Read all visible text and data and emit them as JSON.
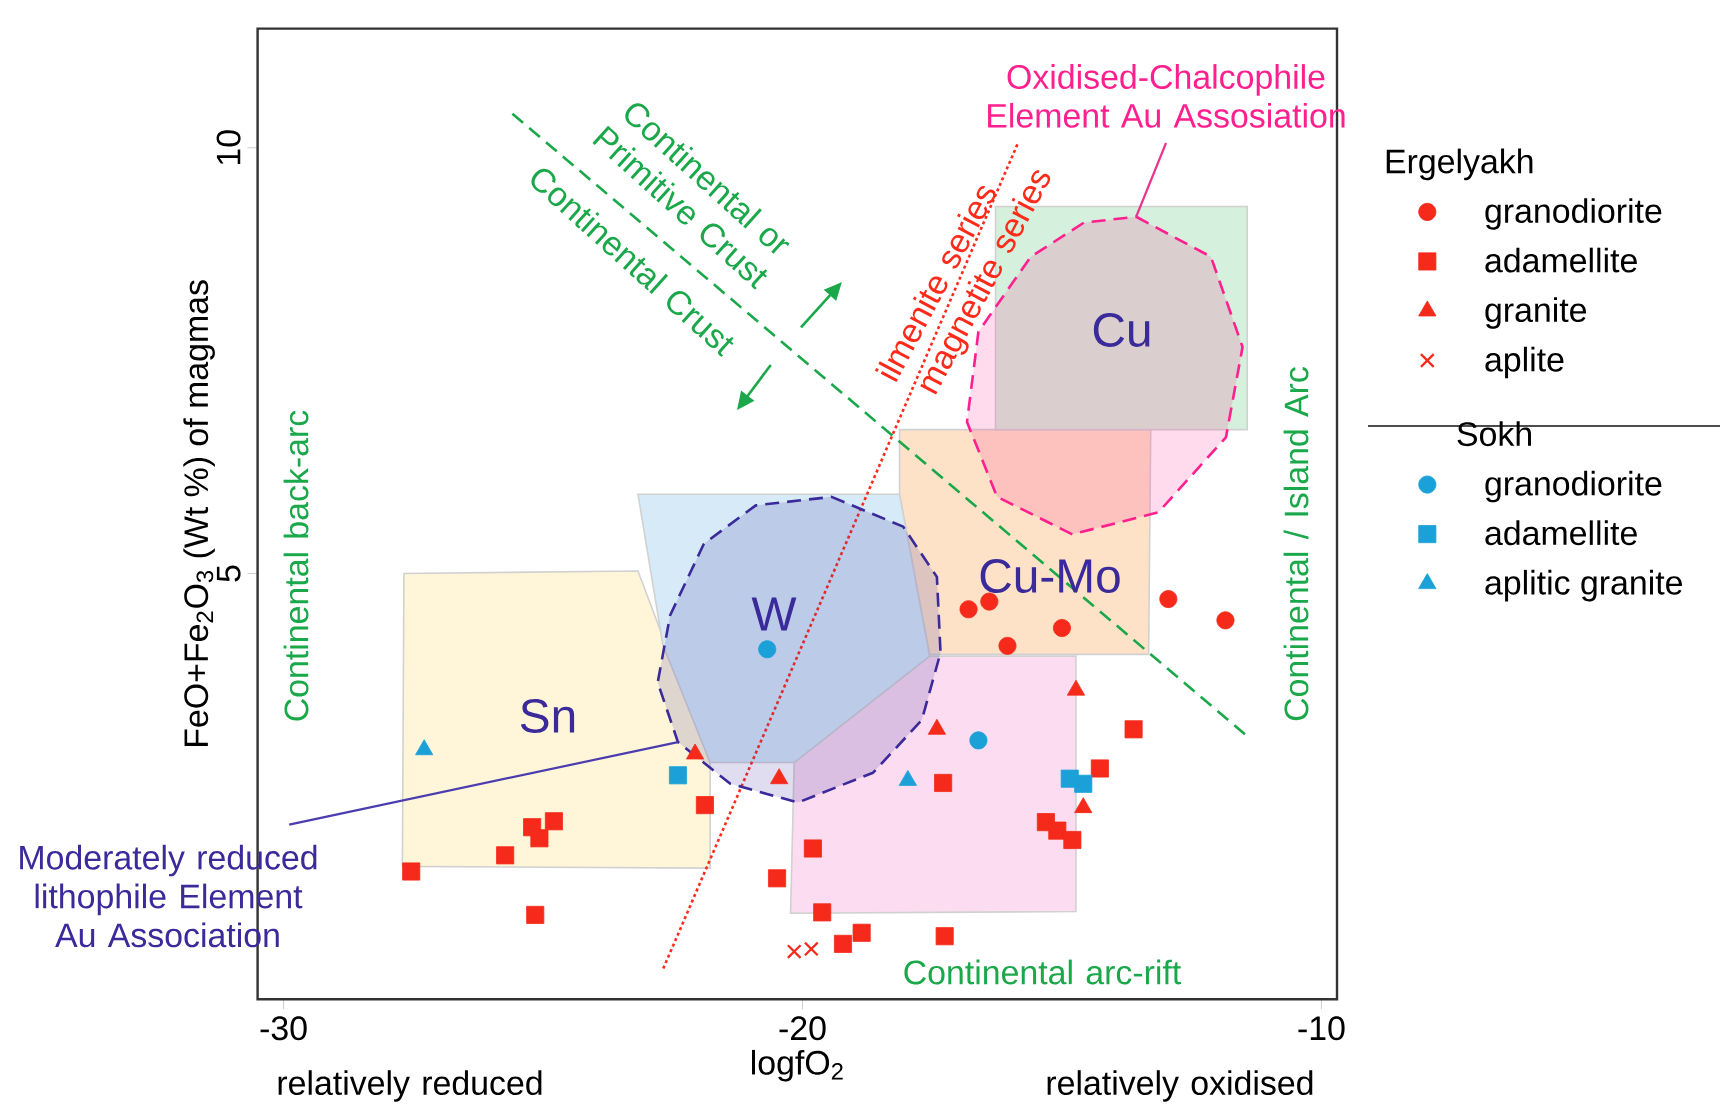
{
  "chart_data": {
    "type": "scatter",
    "xlabel": "logfO$_{2}$",
    "ylabel": "FeO+Fe$_{2}$O$_{3}$ (Wt %) of magmas",
    "xlim": [
      -30.5,
      -9.7
    ],
    "ylim": [
      0,
      11.4
    ],
    "xticks": [
      -30,
      -20,
      -10
    ],
    "yticks": [
      5,
      10
    ],
    "grid": false,
    "legend": "right",
    "series": [
      {
        "type": "area",
        "color": "#fff6d9",
        "x": [
          -27.68,
          -23.17,
          -21.78,
          -21.78,
          -27.71
        ],
        "values": [
          5.0,
          5.03,
          2.78,
          1.54,
          1.56
        ]
      },
      {
        "type": "area",
        "color": "#fde2c8",
        "x": [
          -18.13,
          -13.29,
          -13.33,
          -17.55,
          -18.13
        ],
        "values": [
          6.69,
          6.69,
          4.05,
          4.05,
          5.93
        ]
      },
      {
        "type": "area",
        "color": "#fbdcf0",
        "x": [
          -20.16,
          -17.55,
          -14.73,
          -14.73,
          -20.23
        ],
        "values": [
          2.78,
          4.03,
          4.03,
          1.03,
          1.01
        ]
      },
      {
        "type": "area",
        "color": "#d5f0dc",
        "x": [
          -16.28,
          -11.43,
          -11.43,
          -16.28
        ],
        "values": [
          9.31,
          9.31,
          6.69,
          6.69
        ]
      },
      {
        "type": "area",
        "color": "#d6eaf7",
        "x": [
          -22.69,
          -21.78,
          -20.16,
          -17.55,
          -18.13,
          -23.17
        ],
        "values": [
          4.16,
          2.78,
          2.78,
          4.03,
          5.93,
          5.93
        ]
      },
      {
        "type": "line",
        "color": "#1aa84a",
        "line_style": "dashed",
        "x": [
          -25.59,
          -11.43
        ],
        "values": [
          10.4,
          3.09
        ]
      },
      {
        "type": "line",
        "color": "#ff2a1a",
        "line_style": "dotted",
        "x": [
          -15.86,
          -22.69
        ],
        "values": [
          10.04,
          0.35
        ]
      },
      {
        "type": "area",
        "color": "#3a2a9a",
        "line_style": "dashed",
        "x": [
          -19.44,
          -18.06,
          -17.41,
          -17.34,
          -17.7,
          -18.64,
          -20.09,
          -21.39,
          -22.4,
          -22.79,
          -22.55,
          -21.9,
          -20.9
        ],
        "values": [
          5.9,
          5.55,
          4.96,
          4.07,
          3.28,
          2.66,
          2.31,
          2.53,
          3.02,
          3.72,
          4.51,
          5.35,
          5.8
        ]
      },
      {
        "type": "area",
        "color": "#ff1f8e",
        "line_style": "dashed",
        "x": [
          -13.57,
          -12.13,
          -11.52,
          -11.84,
          -13.14,
          -14.8,
          -16.25,
          -16.83,
          -16.61,
          -15.6,
          -14.58
        ],
        "values": [
          9.19,
          8.72,
          7.66,
          6.6,
          5.72,
          5.46,
          5.9,
          6.78,
          7.84,
          8.72,
          9.12
        ]
      },
      {
        "name": "granodiorite",
        "color": "#f52a1a",
        "marker": "circle",
        "x": [
          -16.8,
          -16.4,
          -16.05,
          -15.0,
          -12.95,
          -11.85
        ],
        "values": [
          4.58,
          4.67,
          4.15,
          4.36,
          4.7,
          4.45
        ]
      },
      {
        "name": "adamellite",
        "color": "#f52a1a",
        "marker": "square",
        "x": [
          -27.54,
          -25.73,
          -25.21,
          -25.07,
          -24.79,
          -25.15,
          -21.88,
          -19.8,
          -20.49,
          -19.62,
          -19.22,
          -18.86,
          -17.29,
          -17.26,
          -15.31,
          -15.09,
          -14.8,
          -14.27,
          -13.62
        ],
        "values": [
          1.5,
          1.69,
          2.02,
          1.89,
          2.09,
          0.99,
          2.28,
          1.77,
          1.42,
          1.02,
          0.65,
          0.78,
          2.54,
          0.74,
          2.08,
          1.98,
          1.87,
          2.71,
          3.17
        ]
      },
      {
        "name": "granite",
        "color": "#f52a1a",
        "marker": "triangle",
        "x": [
          -22.07,
          -20.45,
          -17.41,
          -14.73,
          -14.59
        ],
        "values": [
          2.88,
          2.59,
          3.17,
          3.63,
          2.25
        ]
      },
      {
        "name": "aplite",
        "color": "#f52a1a",
        "marker": "cross",
        "x": [
          -20.16,
          -19.83
        ],
        "values": [
          0.56,
          0.59
        ]
      },
      {
        "name": "granodiorite",
        "color": "#1ba1d8",
        "marker": "circle",
        "x": [
          -20.68,
          -16.61
        ],
        "values": [
          4.11,
          3.04
        ]
      },
      {
        "name": "adamellite",
        "color": "#1ba1d8",
        "marker": "square",
        "x": [
          -22.4,
          -14.85,
          -14.59
        ],
        "values": [
          2.63,
          2.59,
          2.53
        ]
      },
      {
        "name": "aplitic granite",
        "color": "#1ba1d8",
        "marker": "triangle",
        "x": [
          -27.29,
          -17.97
        ],
        "values": [
          2.93,
          2.57
        ]
      }
    ],
    "annotations": [
      "Ergelyakh",
      "Sokh",
      "Sn",
      "W",
      "Cu-Mo",
      "Cu",
      {
        "text": "Moderately reduced lithophile Element Au Association",
        "x": -22.4,
        "y": 3.02
      },
      {
        "text": "Oxidised-Chalcophile Element Au Assosiation",
        "x": -13.57,
        "y": 9.19
      },
      "Continental or Primitive Crust",
      "Continental Crust",
      "Continental back-arc",
      "Continental / Island Arc",
      "Continental arc-rift",
      "ilmenite series",
      "magnetite series",
      "relatively reduced",
      "relatively oxidised"
    ]
  }
}
